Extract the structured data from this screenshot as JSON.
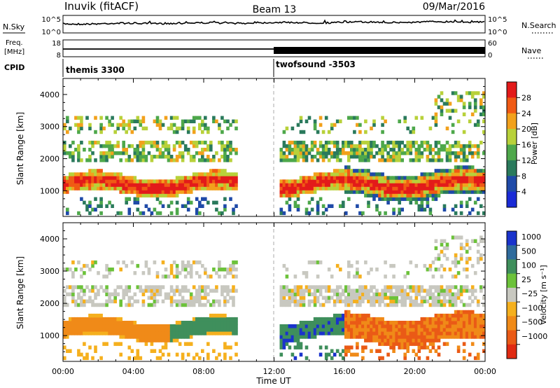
{
  "header": {
    "station": "Inuvik (fitACF)",
    "beam": "Beam 13",
    "date": "09/Mar/2016"
  },
  "colors": {
    "frame": "#000000",
    "divider": "#aaaaaa"
  },
  "strips": {
    "nsky_label": "N.Sky",
    "nsky_ticks": [
      "10^5",
      "10^0"
    ],
    "nsearch_label": "N.Search",
    "nsearch_ticks": [
      "10^5",
      "10^0"
    ],
    "freq_label_1": "Freq.",
    "freq_label_2": "[MHz]",
    "freq_ticks": [
      "18",
      "8"
    ],
    "nave_label": "Nave",
    "nave_ticks": [
      "60",
      "0"
    ],
    "cpid_label": "CPID"
  },
  "cpid_segments": [
    {
      "name": "themis 3300",
      "start_hour": 0
    },
    {
      "name": "twofsound -3503",
      "start_hour": 12
    }
  ],
  "chart_data": [
    {
      "type": "heatmap",
      "name": "Power",
      "ylabel": "Slant Range [km]",
      "y_ticks": [
        1000,
        2000,
        3000,
        4000
      ],
      "ylim": [
        200,
        4500
      ],
      "xlim": [
        0,
        24
      ],
      "colorbar": {
        "label": "Power [dB]",
        "ticks": [
          "28",
          "24",
          "20",
          "16",
          "12",
          "8",
          "4"
        ],
        "range": [
          0,
          32
        ]
      }
    },
    {
      "type": "heatmap",
      "name": "Velocity",
      "ylabel": "Slant Range [km]",
      "y_ticks": [
        1000,
        2000,
        3000,
        4000
      ],
      "ylim": [
        200,
        4500
      ],
      "xlim": [
        0,
        24
      ],
      "colorbar": {
        "label": "Velocity [m s⁻¹]",
        "ticks": [
          "1000",
          "500",
          "100",
          "25",
          "−25",
          "−100",
          "−500",
          "−1000"
        ]
      }
    }
  ],
  "x_axis": {
    "label": "Time UT",
    "ticks": [
      "00:00",
      "04:00",
      "08:00",
      "12:00",
      "16:00",
      "20:00",
      "00:00"
    ],
    "hours": [
      0,
      4,
      8,
      12,
      16,
      20,
      24
    ]
  }
}
